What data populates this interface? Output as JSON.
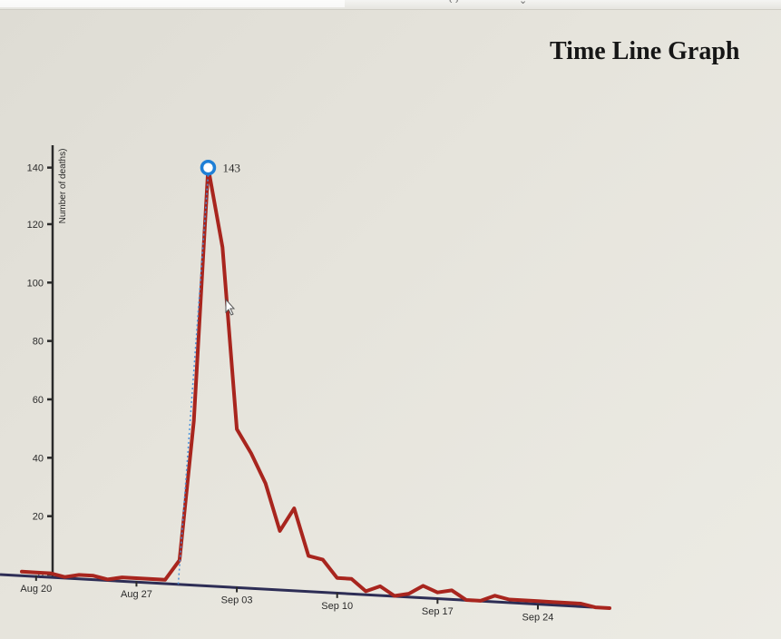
{
  "page": {
    "title": "Time Line Graph"
  },
  "chart_data": {
    "type": "line",
    "title": "Time Line Graph",
    "xlabel": "",
    "ylabel": "Number of deaths)",
    "xlim": [
      "1854-08-19",
      "1854-09-29"
    ],
    "ylim": [
      0,
      143
    ],
    "x_ticks": [
      "Aug 20",
      "Aug 27",
      "Sep 03",
      "Sep 10",
      "Sep 17",
      "Sep 24"
    ],
    "y_ticks": [
      0,
      20,
      40,
      60,
      80,
      100,
      120,
      140
    ],
    "series": [
      {
        "color": "#a8251e",
        "points": [
          [
            "1854-08-19",
            1
          ],
          [
            "1854-08-20",
            1
          ],
          [
            "1854-08-21",
            1
          ],
          [
            "1854-08-22",
            0
          ],
          [
            "1854-08-23",
            1
          ],
          [
            "1854-08-24",
            1
          ],
          [
            "1854-08-25",
            0
          ],
          [
            "1854-08-26",
            1
          ],
          [
            "1854-08-27",
            1
          ],
          [
            "1854-08-28",
            1
          ],
          [
            "1854-08-29",
            1
          ],
          [
            "1854-08-30",
            8
          ],
          [
            "1854-08-31",
            56
          ],
          [
            "1854-09-01",
            143
          ],
          [
            "1854-09-02",
            116
          ],
          [
            "1854-09-03",
            54
          ],
          [
            "1854-09-04",
            46
          ],
          [
            "1854-09-05",
            36
          ],
          [
            "1854-09-06",
            20
          ],
          [
            "1854-09-07",
            28
          ],
          [
            "1854-09-08",
            12
          ],
          [
            "1854-09-09",
            11
          ],
          [
            "1854-09-10",
            5
          ],
          [
            "1854-09-11",
            5
          ],
          [
            "1854-09-12",
            1
          ],
          [
            "1854-09-13",
            3
          ],
          [
            "1854-09-14",
            0
          ],
          [
            "1854-09-15",
            1
          ],
          [
            "1854-09-16",
            4
          ],
          [
            "1854-09-17",
            2
          ],
          [
            "1854-09-18",
            3
          ],
          [
            "1854-09-19",
            0
          ],
          [
            "1854-09-20",
            0
          ],
          [
            "1854-09-21",
            2
          ],
          [
            "1854-09-22",
            1
          ],
          [
            "1854-09-23",
            1
          ],
          [
            "1854-09-24",
            1
          ],
          [
            "1854-09-25",
            1
          ],
          [
            "1854-09-26",
            1
          ],
          [
            "1854-09-27",
            1
          ],
          [
            "1854-09-28",
            0
          ],
          [
            "1854-09-29",
            0
          ]
        ]
      }
    ],
    "highlight": {
      "date": "1854-09-01",
      "value": 143,
      "label": "143",
      "marker_color": "#1f7fd6"
    },
    "grid": false
  }
}
